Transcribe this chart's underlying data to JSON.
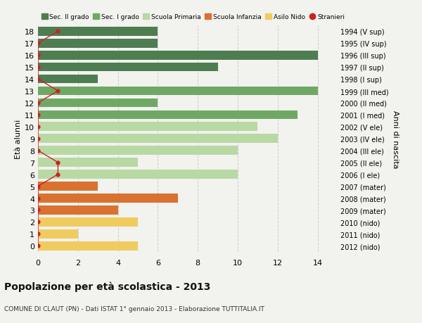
{
  "ages": [
    18,
    17,
    16,
    15,
    14,
    13,
    12,
    11,
    10,
    9,
    8,
    7,
    6,
    5,
    4,
    3,
    2,
    1,
    0
  ],
  "right_labels": [
    "1994 (V sup)",
    "1995 (IV sup)",
    "1996 (III sup)",
    "1997 (II sup)",
    "1998 (I sup)",
    "1999 (III med)",
    "2000 (II med)",
    "2001 (I med)",
    "2002 (V ele)",
    "2003 (IV ele)",
    "2004 (III ele)",
    "2005 (II ele)",
    "2006 (I ele)",
    "2007 (mater)",
    "2008 (mater)",
    "2009 (mater)",
    "2010 (nido)",
    "2011 (nido)",
    "2012 (nido)"
  ],
  "bar_values": [
    6,
    6,
    14,
    9,
    3,
    14,
    6,
    13,
    11,
    12,
    10,
    5,
    10,
    3,
    7,
    4,
    5,
    2,
    5
  ],
  "bar_colors": [
    "#4e7d52",
    "#4e7d52",
    "#4e7d52",
    "#4e7d52",
    "#4e7d52",
    "#6fa865",
    "#6fa865",
    "#6fa865",
    "#b8d9a4",
    "#b8d9a4",
    "#b8d9a4",
    "#b8d9a4",
    "#b8d9a4",
    "#d97230",
    "#d97230",
    "#d97230",
    "#f0cc60",
    "#f0cc60",
    "#f0cc60"
  ],
  "stranieri_values": [
    1,
    0,
    0,
    0,
    0,
    1,
    0,
    0,
    0,
    0,
    0,
    1,
    1,
    0,
    0,
    0,
    0,
    0,
    0
  ],
  "stranieri_color": "#cc2222",
  "legend_items": [
    {
      "label": "Sec. II grado",
      "color": "#4e7d52"
    },
    {
      "label": "Sec. I grado",
      "color": "#6fa865"
    },
    {
      "label": "Scuola Primaria",
      "color": "#b8d9a4"
    },
    {
      "label": "Scuola Infanzia",
      "color": "#d97230"
    },
    {
      "label": "Asilo Nido",
      "color": "#f0cc60"
    },
    {
      "label": "Stranieri",
      "color": "#cc2222"
    }
  ],
  "ylabel_left": "Età alunni",
  "ylabel_right": "Anni di nascita",
  "title": "Popolazione per età scolastica - 2013",
  "subtitle": "COMUNE DI CLAUT (PN) - Dati ISTAT 1° gennaio 2013 - Elaborazione TUTTITALIA.IT",
  "xlim": [
    0,
    15
  ],
  "grid_color": "#cccccc",
  "bg_color": "#f2f2ee",
  "bar_height": 0.75
}
